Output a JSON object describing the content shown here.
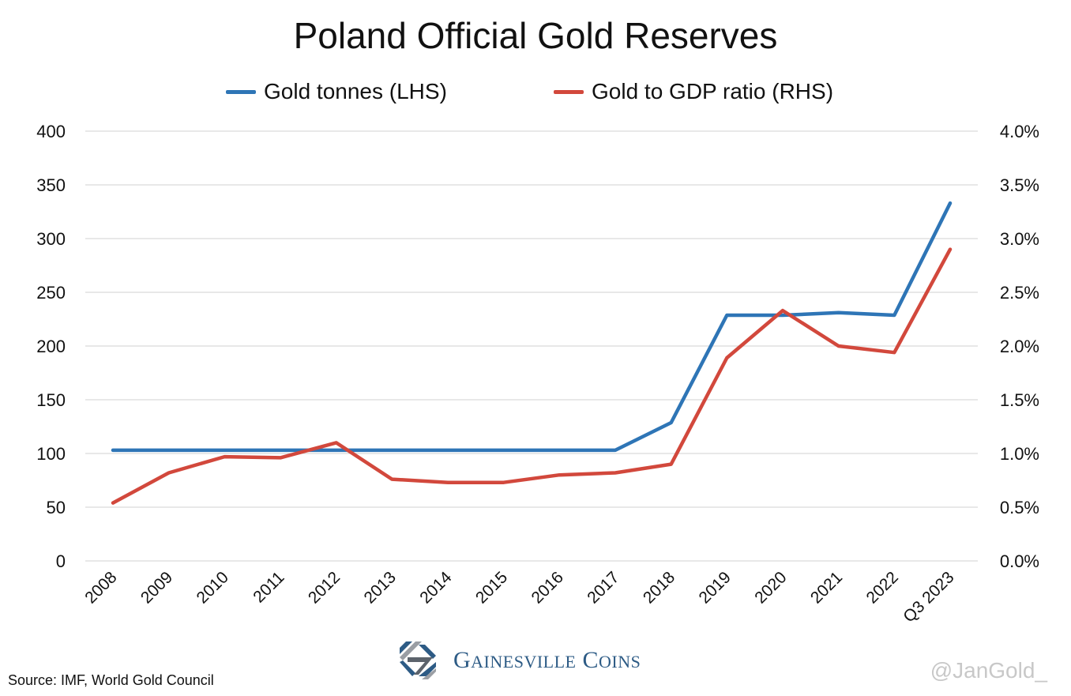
{
  "chart_data": {
    "type": "line",
    "title": "Poland Official Gold Reserves",
    "categories": [
      "2008",
      "2009",
      "2010",
      "2011",
      "2012",
      "2013",
      "2014",
      "2015",
      "2016",
      "2017",
      "2018",
      "2019",
      "2020",
      "2021",
      "2022",
      "Q3 2023"
    ],
    "series": [
      {
        "name": "Gold tonnes (LHS)",
        "axis": "left",
        "color": "#2e75b6",
        "values": [
          103,
          103,
          103,
          103,
          103,
          103,
          103,
          103,
          103,
          103,
          128.7,
          228.7,
          228.7,
          231,
          228.7,
          333
        ]
      },
      {
        "name": "Gold to GDP ratio (RHS)",
        "axis": "right",
        "color": "#d2483c",
        "values": [
          0.54,
          0.82,
          0.97,
          0.96,
          1.1,
          0.76,
          0.73,
          0.73,
          0.8,
          0.82,
          0.9,
          1.89,
          2.33,
          2.0,
          1.94,
          2.9
        ]
      }
    ],
    "left_axis": {
      "label": "",
      "range": [
        0,
        400
      ],
      "ticks": [
        "0",
        "50",
        "100",
        "150",
        "200",
        "250",
        "300",
        "350",
        "400"
      ]
    },
    "right_axis": {
      "label": "",
      "range": [
        0,
        4.0
      ],
      "ticks": [
        "0.0%",
        "0.5%",
        "1.0%",
        "1.5%",
        "2.0%",
        "2.5%",
        "3.0%",
        "3.5%",
        "4.0%"
      ]
    },
    "xlabel": "",
    "grid": true,
    "legend_position": "top-center"
  },
  "footer": {
    "source": "Source: IMF, World Gold Council",
    "brand_first": "G",
    "brand_first_rest": "AINESVILLE",
    "brand_second": "C",
    "brand_second_rest": "OINS",
    "watermark": "@JanGold_"
  }
}
